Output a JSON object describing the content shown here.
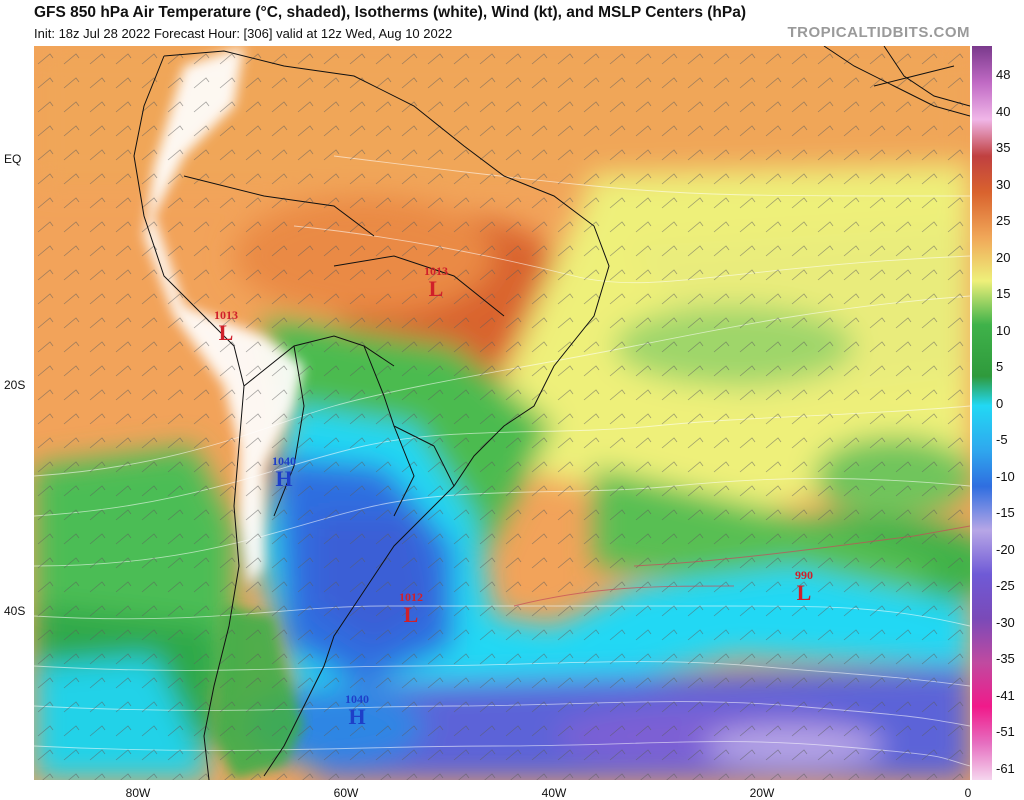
{
  "header": {
    "title": "GFS 850 hPa Air Temperature (°C, shaded), Isotherms (white), Wind (kt), and MSLP Centers (hPa)",
    "subtitle": "Init: 18z Jul 28 2022   Forecast Hour: [306]   valid at 12z Wed, Aug 10 2022",
    "brand": "TROPICALTIDBITS.COM"
  },
  "axes": {
    "lat_labels": [
      "EQ",
      "20S",
      "40S"
    ],
    "lon_labels": [
      "80W",
      "60W",
      "40W",
      "20W",
      "0"
    ]
  },
  "colorbar": {
    "labels": [
      "48",
      "40",
      "35",
      "30",
      "25",
      "20",
      "15",
      "10",
      "5",
      "0",
      "-5",
      "-10",
      "-15",
      "-20",
      "-25",
      "-30",
      "-35",
      "-41",
      "-51",
      "-61"
    ]
  },
  "pressure_centers": [
    {
      "type": "L",
      "value": "1013",
      "color": "#d0202a"
    },
    {
      "type": "L",
      "value": "1013",
      "color": "#d0202a"
    },
    {
      "type": "H",
      "value": "1040",
      "color": "#1e3fc8"
    },
    {
      "type": "L",
      "value": "1012",
      "color": "#d0202a"
    },
    {
      "type": "L",
      "value": "990",
      "color": "#d0202a"
    },
    {
      "type": "H",
      "value": "1040",
      "color": "#1e3fc8"
    }
  ],
  "colors": {
    "warm_orange": "#f2a35a",
    "deep_orange": "#d9632e",
    "yellow": "#eef07a",
    "green": "#3fb24a",
    "dark_green": "#2f9a3c",
    "cyan": "#22d8f4",
    "blue": "#2f6ee0",
    "purple": "#6f5ad6",
    "lavender": "#b7a6e6"
  }
}
